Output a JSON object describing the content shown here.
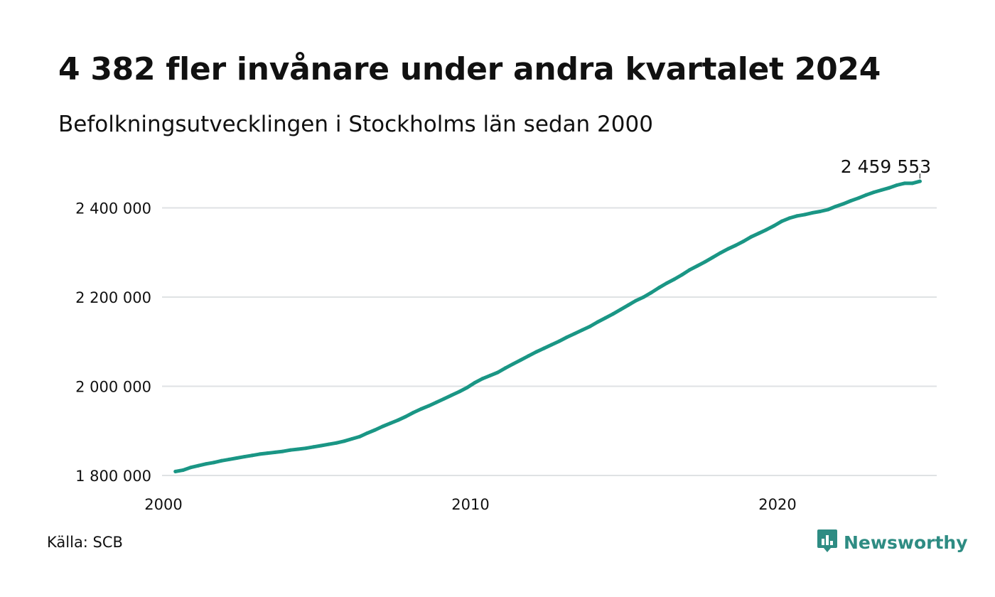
{
  "header": {
    "title": "4 382 fler invånare under andra kvartalet 2024",
    "subtitle": "Befolkningsutvecklingen i Stockholms län sedan 2000"
  },
  "footer": {
    "source": "Källa: SCB",
    "brand": "Newsworthy",
    "brand_icon": "newsworthy-logo-icon"
  },
  "colors": {
    "line": "#1a9685",
    "grid": "#dfe2e4",
    "brand": "#2e8c83"
  },
  "chart_data": {
    "type": "line",
    "title": "4 382 fler invånare under andra kvartalet 2024",
    "subtitle": "Befolkningsutvecklingen i Stockholms län sedan 2000",
    "xlabel": "",
    "ylabel": "",
    "x_ticks": [
      2000,
      2010,
      2020
    ],
    "y_ticks": [
      {
        "value": 1800000,
        "label": "1 800 000"
      },
      {
        "value": 2000000,
        "label": "2 000 000"
      },
      {
        "value": 2200000,
        "label": "2 200 000"
      },
      {
        "value": 2400000,
        "label": "2 400 000"
      }
    ],
    "xlim": [
      2000,
      2025
    ],
    "ylim": [
      1800000,
      2460000
    ],
    "grid": "horizontal",
    "end_label": "2 459 553",
    "series": [
      {
        "values": [
          [
            2000.25,
            1809000
          ],
          [
            2000.5,
            1812000
          ],
          [
            2000.75,
            1818000
          ],
          [
            2001.0,
            1822000
          ],
          [
            2001.25,
            1826000
          ],
          [
            2001.5,
            1829000
          ],
          [
            2001.75,
            1833000
          ],
          [
            2002.0,
            1836000
          ],
          [
            2002.25,
            1839000
          ],
          [
            2002.5,
            1842000
          ],
          [
            2002.75,
            1845000
          ],
          [
            2003.0,
            1848000
          ],
          [
            2003.25,
            1850000
          ],
          [
            2003.5,
            1852000
          ],
          [
            2003.75,
            1854000
          ],
          [
            2004.0,
            1857000
          ],
          [
            2004.25,
            1859000
          ],
          [
            2004.5,
            1861000
          ],
          [
            2004.75,
            1864000
          ],
          [
            2005.0,
            1867000
          ],
          [
            2005.25,
            1870000
          ],
          [
            2005.5,
            1873000
          ],
          [
            2005.75,
            1877000
          ],
          [
            2006.0,
            1882000
          ],
          [
            2006.25,
            1887000
          ],
          [
            2006.5,
            1895000
          ],
          [
            2006.75,
            1902000
          ],
          [
            2007.0,
            1910000
          ],
          [
            2007.25,
            1917000
          ],
          [
            2007.5,
            1924000
          ],
          [
            2007.75,
            1932000
          ],
          [
            2008.0,
            1941000
          ],
          [
            2008.25,
            1949000
          ],
          [
            2008.5,
            1956000
          ],
          [
            2008.75,
            1964000
          ],
          [
            2009.0,
            1972000
          ],
          [
            2009.25,
            1980000
          ],
          [
            2009.5,
            1988000
          ],
          [
            2009.75,
            1997000
          ],
          [
            2010.0,
            2008000
          ],
          [
            2010.25,
            2017000
          ],
          [
            2010.5,
            2024000
          ],
          [
            2010.75,
            2031000
          ],
          [
            2011.0,
            2041000
          ],
          [
            2011.25,
            2050000
          ],
          [
            2011.5,
            2059000
          ],
          [
            2011.75,
            2068000
          ],
          [
            2012.0,
            2077000
          ],
          [
            2012.25,
            2085000
          ],
          [
            2012.5,
            2093000
          ],
          [
            2012.75,
            2101000
          ],
          [
            2013.0,
            2110000
          ],
          [
            2013.25,
            2118000
          ],
          [
            2013.5,
            2126000
          ],
          [
            2013.75,
            2134000
          ],
          [
            2014.0,
            2144000
          ],
          [
            2014.25,
            2153000
          ],
          [
            2014.5,
            2162000
          ],
          [
            2014.75,
            2172000
          ],
          [
            2015.0,
            2182000
          ],
          [
            2015.25,
            2192000
          ],
          [
            2015.5,
            2200000
          ],
          [
            2015.75,
            2210000
          ],
          [
            2016.0,
            2221000
          ],
          [
            2016.25,
            2231000
          ],
          [
            2016.5,
            2240000
          ],
          [
            2016.75,
            2250000
          ],
          [
            2017.0,
            2261000
          ],
          [
            2017.25,
            2270000
          ],
          [
            2017.5,
            2279000
          ],
          [
            2017.75,
            2289000
          ],
          [
            2018.0,
            2299000
          ],
          [
            2018.25,
            2308000
          ],
          [
            2018.5,
            2316000
          ],
          [
            2018.75,
            2325000
          ],
          [
            2019.0,
            2335000
          ],
          [
            2019.25,
            2343000
          ],
          [
            2019.5,
            2351000
          ],
          [
            2019.75,
            2360000
          ],
          [
            2020.0,
            2370000
          ],
          [
            2020.25,
            2377000
          ],
          [
            2020.5,
            2382000
          ],
          [
            2020.75,
            2385000
          ],
          [
            2021.0,
            2389000
          ],
          [
            2021.25,
            2392000
          ],
          [
            2021.5,
            2396000
          ],
          [
            2021.75,
            2403000
          ],
          [
            2022.0,
            2409000
          ],
          [
            2022.25,
            2416000
          ],
          [
            2022.5,
            2422000
          ],
          [
            2022.75,
            2429000
          ],
          [
            2023.0,
            2435000
          ],
          [
            2023.25,
            2440000
          ],
          [
            2023.5,
            2445000
          ],
          [
            2023.75,
            2451000
          ],
          [
            2024.0,
            2455171
          ],
          [
            2024.25,
            2455171
          ],
          [
            2024.5,
            2459553
          ]
        ]
      }
    ]
  }
}
